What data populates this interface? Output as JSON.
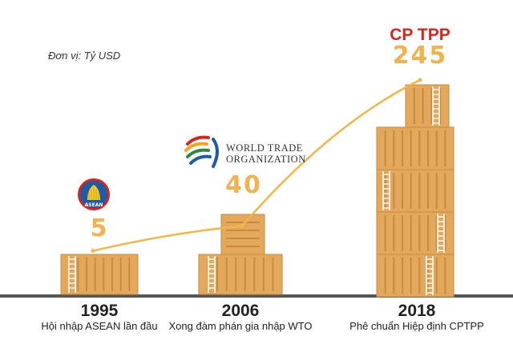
{
  "unit_label": "Đơn vị: Tỷ USD",
  "annotations": {
    "cptpp_label": "CP TPP",
    "wto_line1": "WORLD TRADE",
    "wto_line2": "ORGANIZATION",
    "asean_logo_text": "ASEAN"
  },
  "colors": {
    "container": "#e4a85c",
    "container_line": "#c98a3f",
    "ladder": "#ffffff",
    "trend_line": "#f4b547",
    "value_text": "#f2b24e",
    "cptpp_text": "#d7261e",
    "ground": "#555555"
  },
  "chart_data": {
    "type": "line",
    "unit": "Tỷ USD",
    "x": [
      "1995",
      "2006",
      "2018"
    ],
    "values": [
      5,
      40,
      245
    ],
    "value_labels": [
      "5",
      "40",
      "245"
    ],
    "captions": [
      "Hội nhập ASEAN lần đầu",
      "Xong đàm phán gia nhập WTO",
      "Phê chuẩn Hiệp định CPTPP"
    ],
    "grid": false,
    "legend": "none"
  }
}
